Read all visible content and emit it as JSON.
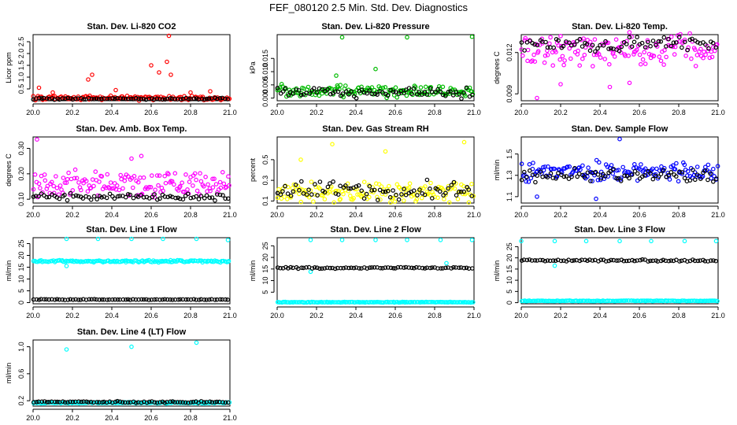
{
  "figure": {
    "title": "FEF_080120  2.5 Min. Std. Dev. Diagnostics"
  },
  "chart_data": [
    {
      "type": "scatter",
      "title": "Stan. Dev. Li-820 CO2",
      "xlabel": "",
      "ylabel": "Licor ppm",
      "xlim": [
        20.0,
        21.0
      ],
      "ylim": [
        0.0,
        2.8
      ],
      "xticks": [
        "20.0",
        "20.2",
        "20.4",
        "20.6",
        "20.8",
        "21.0"
      ],
      "yticks": [
        "0.5",
        "1.0",
        "1.5",
        "2.0",
        "2.5"
      ],
      "series": [
        {
          "color": "#ff0000",
          "base": 0.12,
          "noise": 0.1,
          "spikes": [
            [
              20.03,
              0.55
            ],
            [
              20.1,
              0.35
            ],
            [
              20.28,
              0.9
            ],
            [
              20.3,
              1.1
            ],
            [
              20.42,
              0.45
            ],
            [
              20.6,
              1.5
            ],
            [
              20.64,
              1.2
            ],
            [
              20.68,
              1.65
            ],
            [
              20.69,
              2.75
            ],
            [
              20.7,
              1.1
            ],
            [
              20.8,
              0.35
            ],
            [
              20.9,
              0.4
            ]
          ]
        },
        {
          "color": "#000000",
          "base": 0.08,
          "noise": 0.04,
          "spikes": []
        }
      ]
    },
    {
      "type": "scatter",
      "title": "Stan. Dev. Li-820 Pressure",
      "xlabel": "",
      "ylabel": "kPa",
      "xlim": [
        20.0,
        21.0
      ],
      "ylim": [
        -0.001,
        0.024
      ],
      "xticks": [
        "20.0",
        "20.2",
        "20.4",
        "20.6",
        "20.8",
        "21.0"
      ],
      "yticks": [
        "0.000",
        "0.005",
        "0.010",
        "0.015"
      ],
      "series": [
        {
          "color": "#00bb00",
          "base": 0.0025,
          "noise": 0.0025,
          "spikes": [
            [
              20.33,
              0.023
            ],
            [
              20.66,
              0.023
            ],
            [
              20.99,
              0.0232
            ],
            [
              20.5,
              0.011
            ],
            [
              20.3,
              0.0085
            ]
          ]
        },
        {
          "color": "#000000",
          "base": 0.002,
          "noise": 0.002,
          "spikes": []
        }
      ]
    },
    {
      "type": "scatter",
      "title": "Stan. Dev. Li-820 Temp.",
      "xlabel": "",
      "ylabel": "degrees C",
      "xlim": [
        20.0,
        21.0
      ],
      "ylim": [
        0.0085,
        0.0133
      ],
      "xticks": [
        "20.0",
        "20.2",
        "20.4",
        "20.6",
        "20.8",
        "21.0"
      ],
      "yticks": [
        "0.009",
        "0.012"
      ],
      "series": [
        {
          "color": "#ff00ff",
          "base": 0.0122,
          "noise": 0.0012,
          "spikes": [
            [
              20.08,
              0.0087
            ],
            [
              20.2,
              0.0097
            ],
            [
              20.45,
              0.0095
            ],
            [
              20.55,
              0.0098
            ],
            [
              20.2,
              0.0132
            ]
          ]
        },
        {
          "color": "#000000",
          "base": 0.0126,
          "noise": 0.0005,
          "spikes": []
        }
      ]
    },
    {
      "type": "scatter",
      "title": "Stan. Dev. Amb. Box Temp.",
      "xlabel": "",
      "ylabel": "degrees C",
      "xlim": [
        20.0,
        21.0
      ],
      "ylim": [
        0.085,
        0.345
      ],
      "xticks": [
        "20.0",
        "20.2",
        "20.4",
        "20.6",
        "20.8",
        "21.0"
      ],
      "yticks": [
        "0.10",
        "0.20",
        "0.30"
      ],
      "series": [
        {
          "color": "#ff00ff",
          "base": 0.16,
          "noise": 0.05,
          "spikes": [
            [
              20.02,
              0.335
            ],
            [
              20.5,
              0.26
            ],
            [
              20.55,
              0.27
            ]
          ]
        },
        {
          "color": "#000000",
          "base": 0.11,
          "noise": 0.015,
          "spikes": []
        }
      ]
    },
    {
      "type": "scatter",
      "title": "Stan. Dev. Gas Stream RH",
      "xlabel": "",
      "ylabel": "percent",
      "xlim": [
        20.0,
        21.0
      ],
      "ylim": [
        0.08,
        0.72
      ],
      "xticks": [
        "20.0",
        "20.2",
        "20.4",
        "20.6",
        "20.8",
        "21.0"
      ],
      "yticks": [
        "0.1",
        "0.3",
        "0.5"
      ],
      "series": [
        {
          "color": "#ffff00",
          "base": 0.18,
          "noise": 0.1,
          "spikes": [
            [
              20.28,
              0.65
            ],
            [
              20.95,
              0.67
            ],
            [
              20.55,
              0.58
            ],
            [
              20.12,
              0.5
            ]
          ]
        },
        {
          "color": "#000000",
          "base": 0.2,
          "noise": 0.1,
          "spikes": []
        }
      ]
    },
    {
      "type": "scatter",
      "title": "Stan. Dev. Sample Flow",
      "xlabel": "",
      "ylabel": "ml/min",
      "xlim": [
        20.0,
        21.0
      ],
      "ylim": [
        1.04,
        1.66
      ],
      "xticks": [
        "20.0",
        "20.2",
        "20.4",
        "20.6",
        "20.8",
        "21.0"
      ],
      "yticks": [
        "1.1",
        "1.3",
        "1.5"
      ],
      "series": [
        {
          "color": "#0000ff",
          "base": 1.33,
          "noise": 0.1,
          "spikes": [
            [
              20.5,
              1.64
            ],
            [
              20.08,
              1.1
            ],
            [
              20.38,
              1.08
            ]
          ]
        },
        {
          "color": "#000000",
          "base": 1.3,
          "noise": 0.06,
          "spikes": []
        }
      ]
    },
    {
      "type": "scatter",
      "title": "Stan. Dev. Line 1 Flow",
      "xlabel": "",
      "ylabel": "ml/min",
      "xlim": [
        20.0,
        21.0
      ],
      "ylim": [
        -0.5,
        27.5
      ],
      "xticks": [
        "20.0",
        "20.2",
        "20.4",
        "20.6",
        "20.8",
        "21.0"
      ],
      "yticks": [
        "0",
        "5",
        "10",
        "15",
        "20",
        "25"
      ],
      "series": [
        {
          "color": "#00ffff",
          "base": 17.5,
          "noise": 0.5,
          "spikes": [
            [
              20.17,
              27
            ],
            [
              20.33,
              27
            ],
            [
              20.5,
              27
            ],
            [
              20.66,
              27
            ],
            [
              20.83,
              27
            ],
            [
              20.99,
              26.5
            ],
            [
              20.17,
              15.5
            ]
          ]
        },
        {
          "color": "#000000",
          "base": 1.3,
          "noise": 0.15,
          "spikes": []
        }
      ]
    },
    {
      "type": "scatter",
      "title": "Stan. Dev. Line 2 Flow",
      "xlabel": "",
      "ylabel": "ml/min",
      "xlim": [
        20.0,
        21.0
      ],
      "ylim": [
        0.0,
        28.5
      ],
      "xticks": [
        "20.0",
        "20.2",
        "20.4",
        "20.6",
        "20.8",
        "21.0"
      ],
      "yticks": [
        "5",
        "10",
        "15",
        "20",
        "25"
      ],
      "series": [
        {
          "color": "#00ffff",
          "base": 0.7,
          "noise": 0.15,
          "spikes": [
            [
              20.17,
              27.5
            ],
            [
              20.33,
              27.5
            ],
            [
              20.5,
              27.5
            ],
            [
              20.66,
              27.5
            ],
            [
              20.83,
              27.5
            ],
            [
              20.99,
              27.5
            ],
            [
              20.17,
              13.8
            ],
            [
              20.86,
              17.5
            ]
          ]
        },
        {
          "color": "#000000",
          "base": 15.5,
          "noise": 0.4,
          "spikes": []
        }
      ]
    },
    {
      "type": "scatter",
      "title": "Stan. Dev. Line 3 Flow",
      "xlabel": "",
      "ylabel": "ml/min",
      "xlim": [
        20.0,
        21.0
      ],
      "ylim": [
        -0.5,
        29.0
      ],
      "xticks": [
        "20.0",
        "20.2",
        "20.4",
        "20.6",
        "20.8",
        "21.0"
      ],
      "yticks": [
        "0",
        "5",
        "10",
        "15",
        "20",
        "25"
      ],
      "series": [
        {
          "color": "#00ffff",
          "base": 0.8,
          "noise": 0.15,
          "spikes": [
            [
              20.0,
              27.5
            ],
            [
              20.17,
              27.5
            ],
            [
              20.33,
              27.5
            ],
            [
              20.5,
              27.5
            ],
            [
              20.66,
              27.5
            ],
            [
              20.83,
              27.5
            ],
            [
              20.99,
              27.5
            ],
            [
              20.17,
              16.5
            ]
          ]
        },
        {
          "color": "#000000",
          "base": 18.8,
          "noise": 0.4,
          "spikes": []
        }
      ]
    },
    {
      "type": "scatter",
      "title": "Stan. Dev. Line 4 (LT) Flow",
      "xlabel": "",
      "ylabel": "ml/min",
      "xlim": [
        20.0,
        21.0
      ],
      "ylim": [
        0.12,
        1.1
      ],
      "xticks": [
        "20.0",
        "20.2",
        "20.4",
        "20.6",
        "20.8",
        "21.0"
      ],
      "yticks": [
        "0.2",
        "0.6",
        "1.0"
      ],
      "series": [
        {
          "color": "#00ffff",
          "base": 0.17,
          "noise": 0.01,
          "spikes": [
            [
              20.17,
              0.96
            ],
            [
              20.5,
              1.0
            ],
            [
              20.83,
              1.06
            ]
          ]
        },
        {
          "color": "#000000",
          "base": 0.18,
          "noise": 0.012,
          "spikes": []
        }
      ]
    }
  ]
}
